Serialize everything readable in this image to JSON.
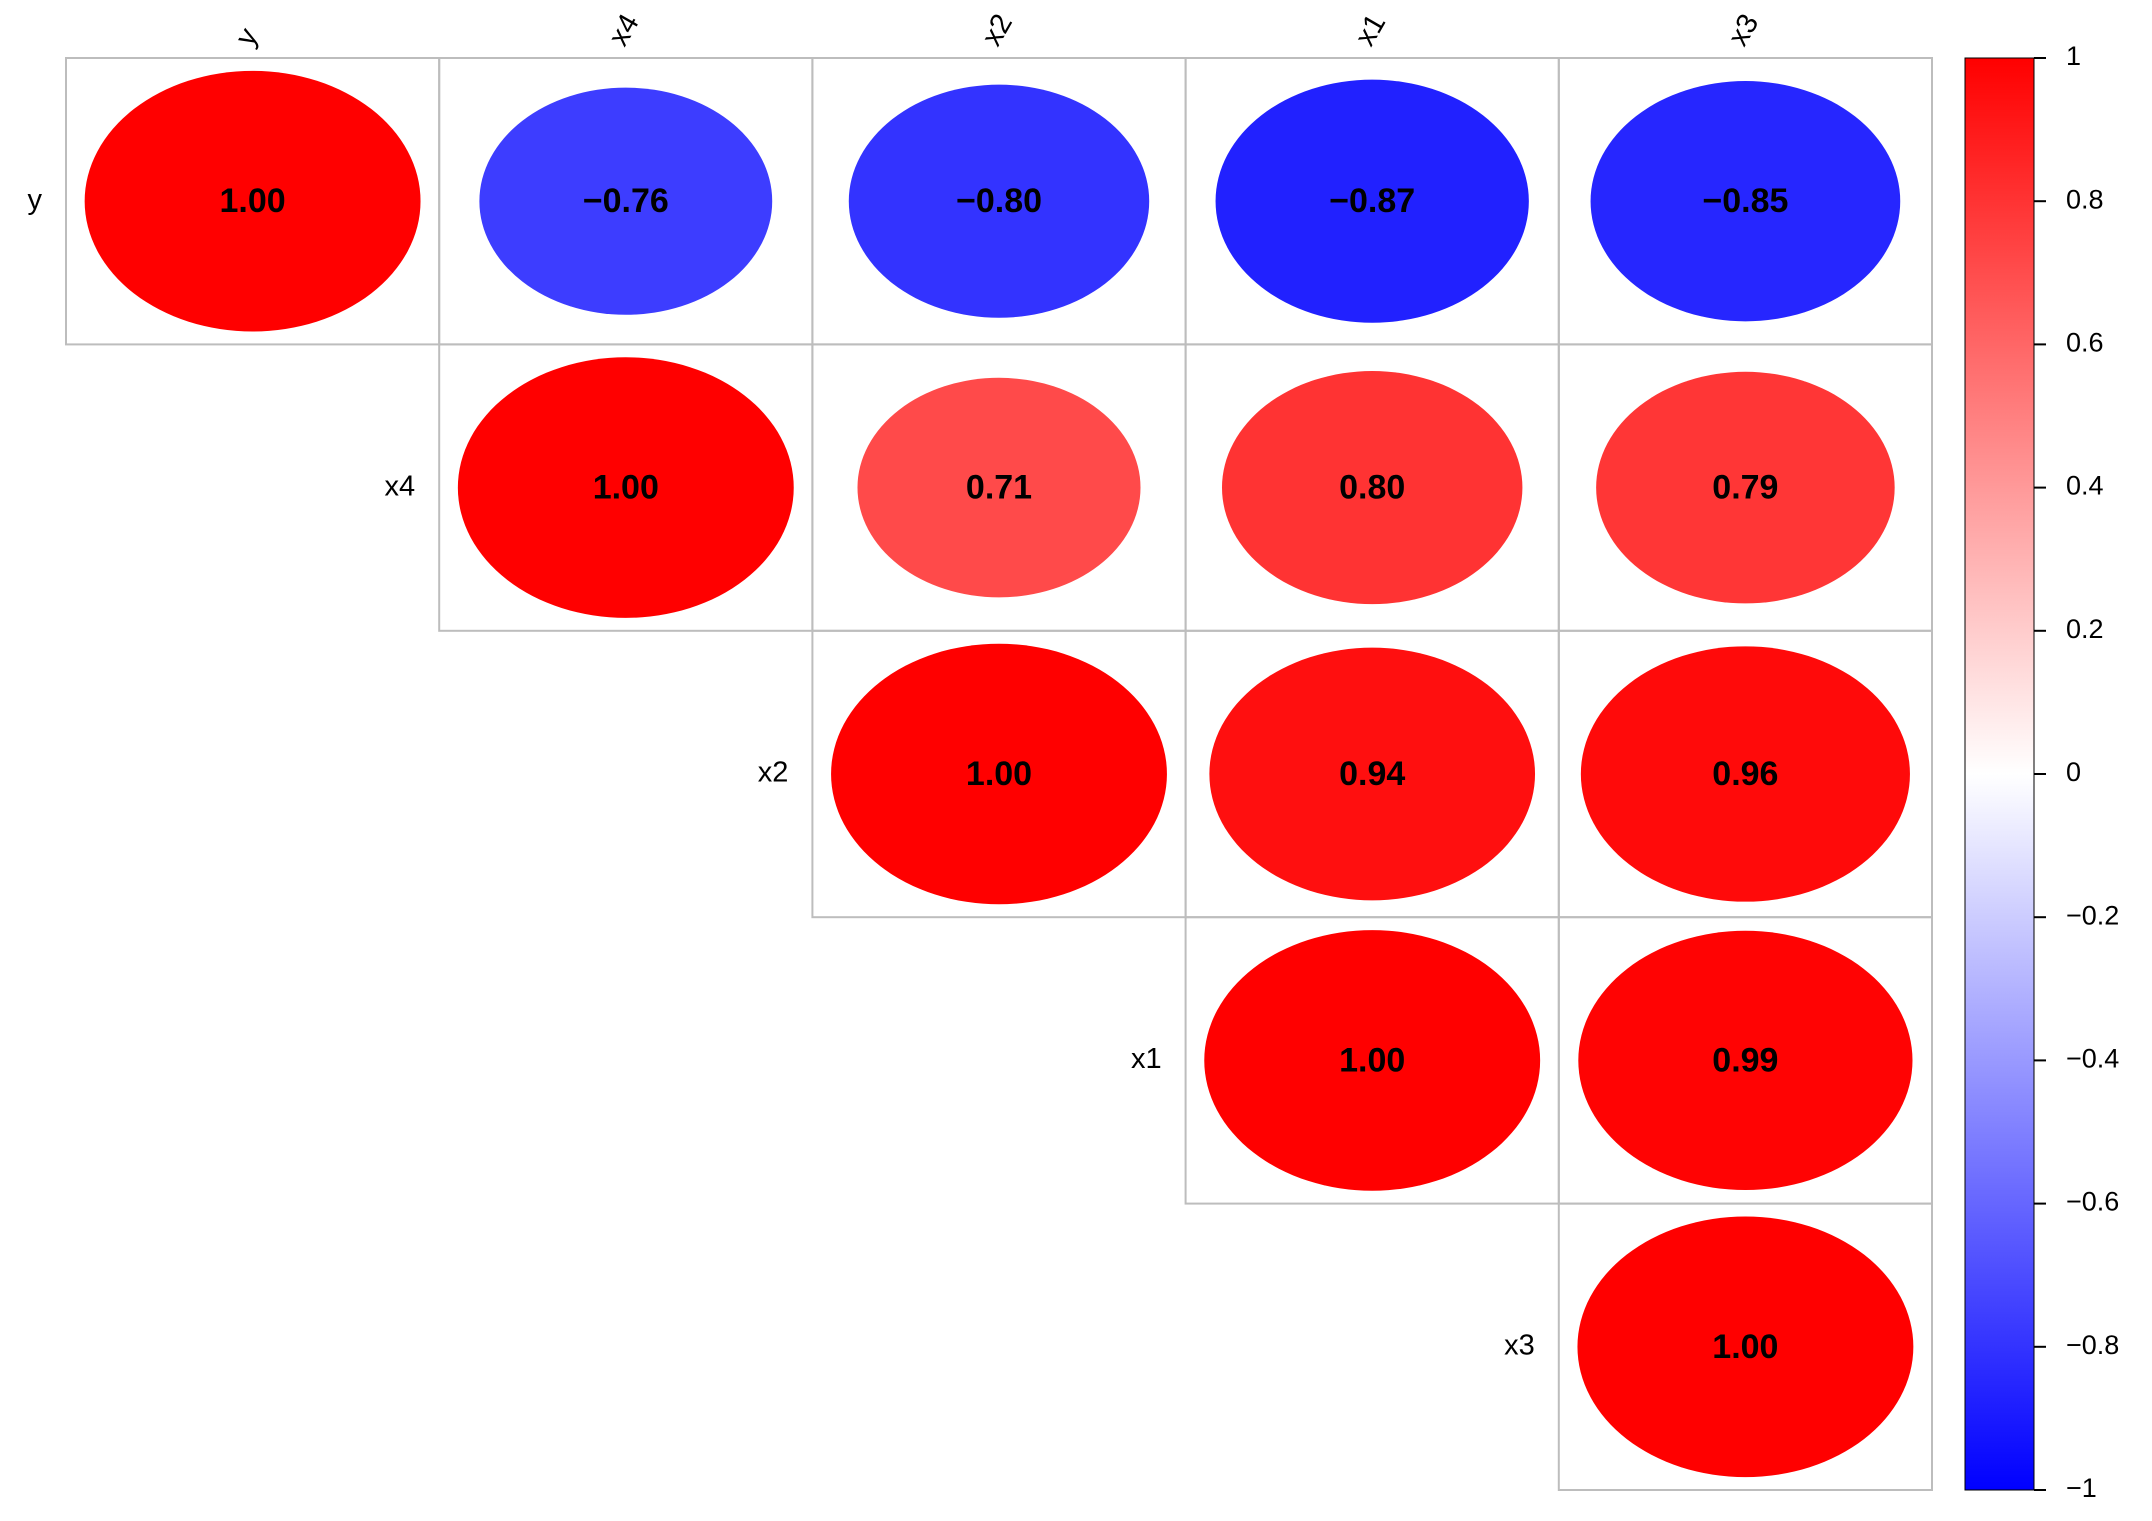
{
  "chart_data": {
    "type": "corrplot",
    "variables": [
      "y",
      "x4",
      "x2",
      "x1",
      "x3"
    ],
    "values": [
      [
        1.0,
        -0.76,
        -0.8,
        -0.87,
        -0.85
      ],
      [
        null,
        1.0,
        0.71,
        0.8,
        0.79
      ],
      [
        null,
        null,
        1.0,
        0.94,
        0.96
      ],
      [
        null,
        null,
        null,
        1.0,
        0.99
      ],
      [
        null,
        null,
        null,
        null,
        1.0
      ]
    ],
    "value_labels": [
      [
        "1.00",
        "−0.76",
        "−0.80",
        "−0.87",
        "−0.85"
      ],
      [
        null,
        "1.00",
        "0.71",
        "0.80",
        "0.79"
      ],
      [
        null,
        null,
        "1.00",
        "0.94",
        "0.96"
      ],
      [
        null,
        null,
        null,
        "1.00",
        "0.99"
      ],
      [
        null,
        null,
        null,
        null,
        "1.00"
      ]
    ],
    "colors": [
      "#0000FF",
      "#FFFFFF",
      "#FF0000"
    ],
    "ylim": [
      -1,
      1
    ],
    "yticks": [
      {
        "value": -1,
        "label": "−1"
      },
      {
        "value": -0.8,
        "label": "−0.8"
      },
      {
        "value": -0.6,
        "label": "−0.6"
      },
      {
        "value": -0.4,
        "label": "−0.4"
      },
      {
        "value": -0.2,
        "label": "−0.2"
      },
      0,
      0.2,
      0.4,
      0.6,
      0.8,
      1
    ]
  }
}
